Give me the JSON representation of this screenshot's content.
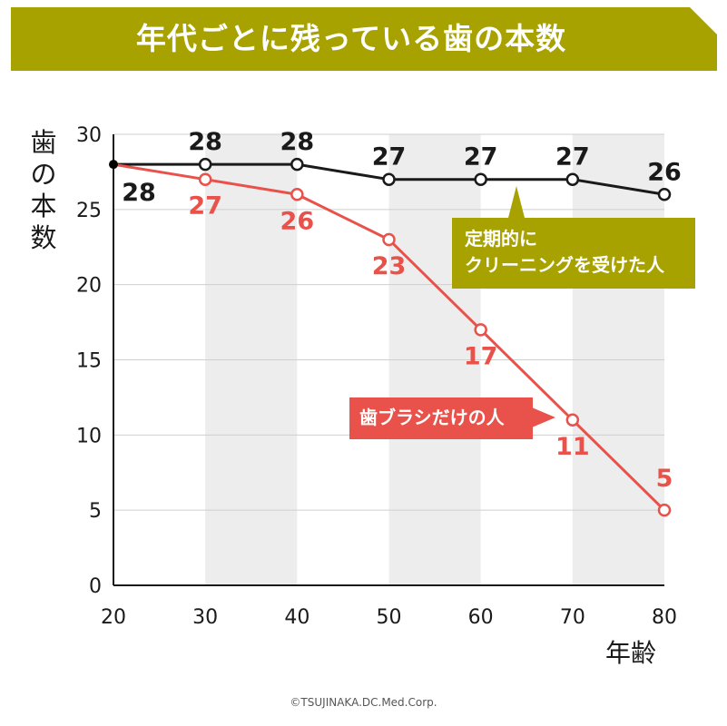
{
  "title": "年代ごとに残っている歯の本数",
  "colors": {
    "banner": "#a8a200",
    "regular_line": "#1a1a1a",
    "brush_line": "#e8524a",
    "stripe": "#ededed",
    "grid": "#cfcfcf"
  },
  "chart_data": {
    "type": "line",
    "xlabel": "年齢",
    "ylabel": "歯の本数",
    "x": [
      20,
      30,
      40,
      50,
      60,
      70,
      80
    ],
    "xlim": [
      20,
      80
    ],
    "ylim": [
      0,
      30
    ],
    "yticks": [
      0,
      5,
      10,
      15,
      20,
      25,
      30
    ],
    "xticks": [
      20,
      30,
      40,
      50,
      60,
      70,
      80
    ],
    "grid": true,
    "series": [
      {
        "name": "定期的にクリーニングを受けた人",
        "name_lines": [
          "定期的に",
          "クリーニングを受けた人"
        ],
        "color": "#1a1a1a",
        "values": [
          28,
          28,
          28,
          27,
          27,
          27,
          26
        ],
        "labels": [
          "28",
          "28",
          "28",
          "27",
          "27",
          "27",
          "26"
        ]
      },
      {
        "name": "歯ブラシだけの人",
        "color": "#e8524a",
        "values": [
          28,
          27,
          26,
          23,
          17,
          11,
          5
        ],
        "labels": [
          "",
          "27",
          "26",
          "23",
          "17",
          "11",
          "5"
        ]
      }
    ]
  },
  "credit": "©TSUJINAKA.DC.Med.Corp."
}
